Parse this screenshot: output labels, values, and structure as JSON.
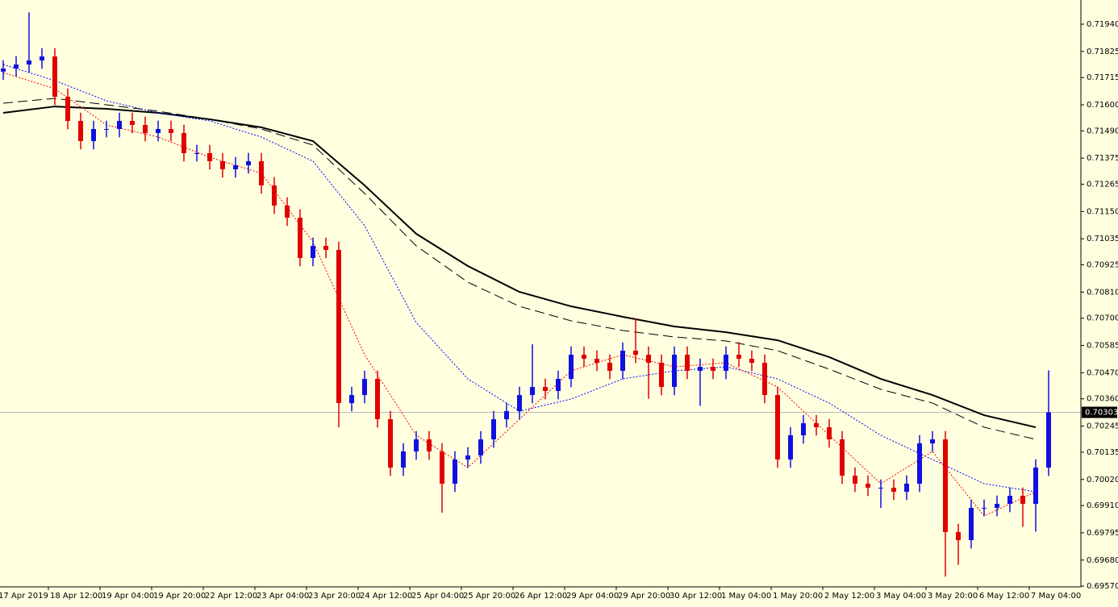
{
  "chart_data": {
    "type": "candlestick",
    "background": "#ffffe0",
    "categories": [
      "17 Apr 2019",
      null,
      null,
      null,
      "18 Apr 12:00",
      null,
      null,
      null,
      "19 Apr 04:00",
      null,
      null,
      null,
      "19 Apr 20:00",
      null,
      null,
      null,
      "22 Apr 12:00",
      null,
      null,
      null,
      "23 Apr 04:00",
      null,
      null,
      null,
      "23 Apr 20:00",
      null,
      null,
      null,
      "24 Apr 12:00",
      null,
      null,
      null,
      "25 Apr 04:00",
      null,
      null,
      null,
      "25 Apr 20:00",
      null,
      null,
      null,
      "26 Apr 12:00",
      null,
      null,
      null,
      "29 Apr 04:00",
      null,
      null,
      null,
      "29 Apr 20:00",
      null,
      null,
      null,
      "30 Apr 12:00",
      null,
      null,
      null,
      "1 May 04:00",
      null,
      null,
      null,
      "1 May 20:00",
      null,
      null,
      null,
      "2 May 12:00",
      null,
      null,
      null,
      "3 May 04:00",
      null,
      null,
      null,
      "3 May 20:00",
      null,
      null,
      null,
      "6 May 12:00",
      null,
      null,
      null,
      "7 May 04:00",
      null
    ],
    "open": [
      0.7174,
      0.71753,
      0.7177,
      0.71787,
      0.71804,
      0.71634,
      0.71532,
      0.71447,
      0.71498,
      0.71498,
      0.71532,
      0.71515,
      0.71481,
      0.71498,
      0.71481,
      0.71396,
      0.71396,
      0.71362,
      0.71328,
      0.71345,
      0.71362,
      0.7126,
      0.71175,
      0.71124,
      0.70954,
      0.71005,
      0.70988,
      0.70342,
      0.70376,
      0.70444,
      0.70274,
      0.7007,
      0.70138,
      0.70189,
      0.70138,
      0.70002,
      0.70104,
      0.70121,
      0.70189,
      0.70274,
      0.70308,
      0.70376,
      0.7041,
      0.70393,
      0.70444,
      0.70546,
      0.70529,
      0.70512,
      0.70478,
      0.70563,
      0.70546,
      0.70512,
      0.7041,
      0.70546,
      0.70478,
      0.70495,
      0.70478,
      0.70546,
      0.70529,
      0.70512,
      0.70376,
      0.70104,
      0.70206,
      0.70257,
      0.7024,
      0.70189,
      0.70036,
      0.70002,
      0.69985,
      0.69985,
      0.69968,
      0.70002,
      0.70172,
      0.70189,
      0.69798,
      0.69764,
      0.699,
      0.699,
      0.69917,
      0.69951,
      0.69917,
      0.7007
    ],
    "high": [
      0.71788,
      0.71805,
      0.7199,
      0.71839,
      0.71839,
      0.71669,
      0.71567,
      0.71533,
      0.71533,
      0.71567,
      0.71567,
      0.7155,
      0.71533,
      0.71533,
      0.71516,
      0.71431,
      0.71431,
      0.71397,
      0.7138,
      0.71397,
      0.71397,
      0.71295,
      0.7121,
      0.71159,
      0.7104,
      0.7104,
      0.71023,
      0.70411,
      0.70479,
      0.70479,
      0.70309,
      0.70173,
      0.70224,
      0.70224,
      0.70173,
      0.70139,
      0.70156,
      0.70224,
      0.70309,
      0.70343,
      0.70411,
      0.7059,
      0.70445,
      0.70479,
      0.70581,
      0.70581,
      0.70564,
      0.70547,
      0.70598,
      0.707,
      0.70581,
      0.70547,
      0.70581,
      0.70581,
      0.7053,
      0.7053,
      0.70581,
      0.706,
      0.70564,
      0.70547,
      0.70411,
      0.70241,
      0.70292,
      0.70292,
      0.70275,
      0.70224,
      0.70071,
      0.70037,
      0.7002,
      0.7002,
      0.70037,
      0.70207,
      0.70224,
      0.70224,
      0.69833,
      0.69935,
      0.69935,
      0.69952,
      0.69986,
      0.69986,
      0.70105,
      0.7048
    ],
    "low": [
      0.71705,
      0.71718,
      0.71735,
      0.71752,
      0.71599,
      0.71497,
      0.71412,
      0.71412,
      0.71463,
      0.71463,
      0.7148,
      0.71446,
      0.71446,
      0.71446,
      0.71361,
      0.71361,
      0.71327,
      0.71293,
      0.71293,
      0.7131,
      0.71225,
      0.7114,
      0.71089,
      0.70919,
      0.70919,
      0.70953,
      0.7024,
      0.70307,
      0.70341,
      0.70239,
      0.70035,
      0.70035,
      0.70103,
      0.70103,
      0.6988,
      0.69967,
      0.70069,
      0.70086,
      0.70154,
      0.70239,
      0.70273,
      0.70341,
      0.70358,
      0.70358,
      0.70409,
      0.70494,
      0.70477,
      0.70443,
      0.70443,
      0.70511,
      0.7036,
      0.70375,
      0.70375,
      0.70443,
      0.7033,
      0.70443,
      0.70443,
      0.70494,
      0.70477,
      0.70341,
      0.70069,
      0.70069,
      0.70171,
      0.70205,
      0.70154,
      0.70001,
      0.69967,
      0.6995,
      0.699,
      0.69933,
      0.69933,
      0.69967,
      0.70137,
      0.6961,
      0.6966,
      0.69729,
      0.69865,
      0.69865,
      0.69882,
      0.6982,
      0.698,
      0.70035
    ],
    "close": [
      0.71753,
      0.7177,
      0.71787,
      0.71804,
      0.71634,
      0.71532,
      0.71447,
      0.71498,
      0.71498,
      0.71532,
      0.71515,
      0.71481,
      0.71498,
      0.71481,
      0.71396,
      0.71396,
      0.71362,
      0.71328,
      0.71345,
      0.71362,
      0.7126,
      0.71175,
      0.71124,
      0.70954,
      0.71005,
      0.70988,
      0.70342,
      0.70376,
      0.70444,
      0.70274,
      0.7007,
      0.70138,
      0.70189,
      0.70138,
      0.70002,
      0.70104,
      0.70121,
      0.70189,
      0.70274,
      0.70308,
      0.70376,
      0.7041,
      0.70393,
      0.70444,
      0.70546,
      0.70529,
      0.70512,
      0.70478,
      0.70563,
      0.70546,
      0.70512,
      0.7041,
      0.70546,
      0.70478,
      0.70495,
      0.70478,
      0.70546,
      0.70529,
      0.70512,
      0.70376,
      0.70104,
      0.70206,
      0.70257,
      0.7024,
      0.70189,
      0.70036,
      0.70002,
      0.69985,
      0.69985,
      0.69968,
      0.70002,
      0.70172,
      0.70189,
      0.69798,
      0.69764,
      0.699,
      0.699,
      0.69917,
      0.69951,
      0.69917,
      0.7007,
      0.70303
    ],
    "up_color": "#1010e0",
    "down_color": "#e00000",
    "overlays": [
      {
        "color": "#000000",
        "style": "solid",
        "values": [
          0.71566,
          0.71593,
          0.71583,
          0.71566,
          0.71539,
          0.71505,
          0.71447,
          0.7126,
          0.71056,
          0.7092,
          0.70811,
          0.7075,
          0.70706,
          0.70665,
          0.70641,
          0.70607,
          0.70536,
          0.70444,
          0.70376,
          0.70291,
          0.7024
        ]
      },
      {
        "color": "#000000",
        "style": "dashed",
        "values": [
          0.71607,
          0.71627,
          0.716,
          0.71573,
          0.71539,
          0.71498,
          0.7143,
          0.71226,
          0.71005,
          0.70852,
          0.7075,
          0.70689,
          0.70648,
          0.70621,
          0.70604,
          0.70563,
          0.70485,
          0.704,
          0.70342,
          0.7024,
          0.70189
        ]
      },
      {
        "color": "#0000ff",
        "style": "dotted",
        "values": [
          0.7177,
          0.71702,
          0.71617,
          0.71566,
          0.71532,
          0.71464,
          0.71362,
          0.7109,
          0.70682,
          0.70444,
          0.70308,
          0.70359,
          0.70444,
          0.70478,
          0.70495,
          0.70444,
          0.70342,
          0.70206,
          0.70104,
          0.70002,
          0.69968
        ]
      },
      {
        "color": "#ff0000",
        "style": "dotted",
        "values": [
          0.71736,
          0.71668,
          0.71515,
          0.71464,
          0.71379,
          0.71311,
          0.71022,
          0.70546,
          0.70206,
          0.7007,
          0.70274,
          0.70478,
          0.70546,
          0.70495,
          0.70512,
          0.7041,
          0.70206,
          0.70002,
          0.70138,
          0.69866,
          0.69968
        ]
      }
    ],
    "current_price": 0.70303,
    "ylim": [
      0.69567,
      0.72042
    ],
    "yticks": [
      {
        "value": 0.7194,
        "label": "0.71940"
      },
      0.71825,
      0.71715,
      {
        "value": 0.716,
        "label": "0.71600"
      },
      {
        "value": 0.7149,
        "label": "0.71490"
      },
      0.71375,
      0.71265,
      {
        "value": 0.7115,
        "label": "0.71150"
      },
      0.71035,
      0.70925,
      {
        "value": 0.7081,
        "label": "0.70810"
      },
      {
        "value": 0.707,
        "label": "0.70700"
      },
      0.70585,
      {
        "value": 0.7047,
        "label": "0.70470"
      },
      {
        "value": 0.7036,
        "label": "0.70360"
      },
      0.70245,
      0.70135,
      {
        "value": 0.7002,
        "label": "0.70020"
      },
      {
        "value": 0.6991,
        "label": "0.69910"
      },
      0.69795,
      {
        "value": 0.6968,
        "label": "0.69680"
      },
      {
        "value": 0.6957,
        "label": "0.69570"
      }
    ]
  }
}
